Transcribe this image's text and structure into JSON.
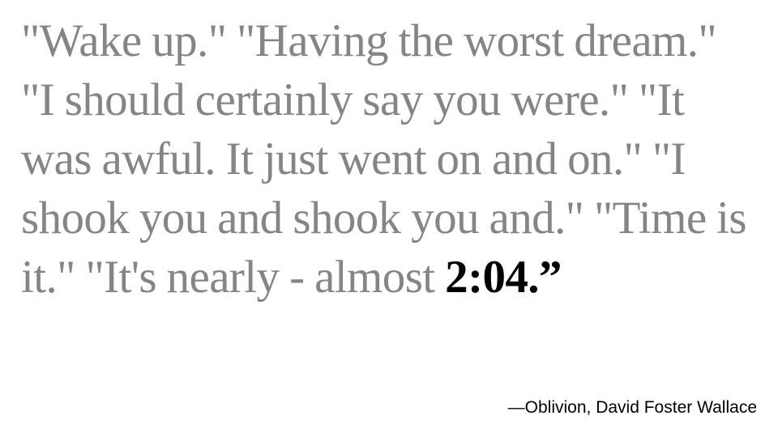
{
  "quote": {
    "text": "\"Wake up.\" \"Having the worst dream.\" \"I should certainly say you were.\" \"It was awful. It just went on and on.\" \"I shook you and shook you and.\" \"Time is it.\" \"It's nearly - almost ",
    "highlight": "2:04.”"
  },
  "attribution": {
    "text": "—Oblivion, David Foster Wallace"
  },
  "colors": {
    "quote_text": "#858585",
    "highlight_text": "#000000",
    "attribution_text": "#000000",
    "background": "#ffffff"
  }
}
